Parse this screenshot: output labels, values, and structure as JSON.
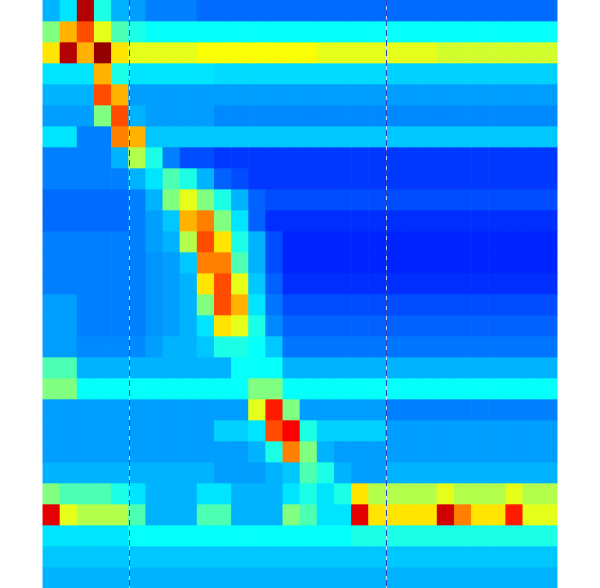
{
  "chart_data": {
    "type": "heatmap",
    "xlim": [
      0,
      30
    ],
    "ylim": [
      0,
      28
    ],
    "tick_labels": false,
    "grid": false,
    "color_range": [
      0,
      10
    ],
    "vlines": [
      5,
      20
    ],
    "cells": [
      [
        3,
        3.5,
        9.5,
        4,
        3,
        2.8,
        2.5,
        2.5,
        2.5,
        2.3,
        2.3,
        2.3,
        2.3,
        2.3,
        2.3,
        2.3,
        2.3,
        2.3,
        2.3,
        2.3,
        2.3,
        2.3,
        2.3,
        2.3,
        2.3,
        2.3,
        2.3,
        2.3,
        2.3,
        2.3
      ],
      [
        5,
        7,
        8,
        6,
        4.5,
        4,
        3.8,
        3.8,
        3.8,
        3.8,
        3.8,
        3.8,
        3.8,
        3.8,
        3.8,
        3.8,
        3.8,
        3.8,
        3.8,
        3.8,
        3.8,
        3.8,
        3.8,
        3.8,
        3.8,
        3.8,
        3.8,
        3.8,
        3.8,
        3.8
      ],
      [
        6.5,
        9.5,
        7,
        9.8,
        6.5,
        6,
        6,
        6,
        6,
        6.2,
        6.2,
        6.2,
        6.2,
        6.2,
        6.2,
        6.2,
        6,
        6,
        6,
        6,
        6,
        6,
        6,
        5.8,
        5.8,
        5.8,
        5.8,
        5.8,
        5.8,
        5.8
      ],
      [
        3.5,
        3.5,
        3.5,
        7,
        4,
        3.5,
        3.5,
        3.5,
        3.5,
        3.5,
        3.4,
        3.4,
        3.4,
        3.4,
        3.4,
        3.4,
        3.4,
        3.4,
        3.4,
        3.4,
        3.3,
        3.3,
        3.3,
        3.3,
        3.3,
        3.3,
        3.3,
        3.3,
        3.3,
        3.3
      ],
      [
        3,
        3,
        3,
        8,
        7,
        2.8,
        2.8,
        2.8,
        2.8,
        2.8,
        2.8,
        2.8,
        2.8,
        2.8,
        2.8,
        2.8,
        2.8,
        2.8,
        2.8,
        2.8,
        2.8,
        2.8,
        2.8,
        2.8,
        2.8,
        2.8,
        2.8,
        2.8,
        2.8,
        2.8
      ],
      [
        2.8,
        2.8,
        2.8,
        5,
        8,
        3,
        2.8,
        2.8,
        2.8,
        2.8,
        2.6,
        2.6,
        2.6,
        2.6,
        2.6,
        2.6,
        2.6,
        2.6,
        2.6,
        2.6,
        2.6,
        2.6,
        2.6,
        2.6,
        2.6,
        2.6,
        2.6,
        2.6,
        2.6,
        2.6
      ],
      [
        3.5,
        3.5,
        2.5,
        2.5,
        7.5,
        7,
        3.2,
        3.2,
        3.2,
        3.2,
        3.2,
        3.2,
        3.2,
        3.2,
        3.2,
        3.2,
        3.2,
        3.2,
        3.2,
        3.2,
        3.2,
        3.2,
        3.2,
        3.2,
        3.2,
        3.2,
        3.2,
        3.2,
        3.2,
        3.2
      ],
      [
        2.5,
        2.5,
        2.5,
        2.5,
        3,
        5.5,
        4,
        2.5,
        2,
        2,
        1.8,
        1.8,
        1.8,
        1.8,
        1.8,
        1.8,
        1.8,
        1.8,
        1.8,
        1.8,
        1.8,
        1.8,
        1.8,
        1.8,
        1.8,
        1.8,
        1.8,
        1.8,
        1.8,
        1.8
      ],
      [
        2.5,
        2.5,
        2.5,
        2.5,
        2.5,
        3,
        3.5,
        4.5,
        4,
        3,
        2.2,
        2,
        1.8,
        1.8,
        1.8,
        1.8,
        1.8,
        1.8,
        1.8,
        1.8,
        1.8,
        1.8,
        1.8,
        1.8,
        1.8,
        1.8,
        1.8,
        1.8,
        1.8,
        1.8
      ],
      [
        2.3,
        2.3,
        2.3,
        2.3,
        2.3,
        2.5,
        3,
        5,
        6,
        5,
        4,
        3,
        2.2,
        2,
        2,
        2,
        2,
        2,
        2,
        2,
        2,
        2,
        2,
        2,
        2,
        2,
        2,
        2,
        2,
        2
      ],
      [
        2.3,
        2.3,
        2.3,
        2.3,
        2.3,
        2.5,
        2.8,
        3.2,
        7,
        7.5,
        5,
        3.5,
        2.2,
        1.7,
        1.7,
        1.7,
        1.7,
        1.7,
        1.7,
        1.7,
        1.7,
        1.7,
        1.7,
        1.7,
        1.7,
        1.7,
        1.7,
        1.7,
        1.7,
        1.7
      ],
      [
        2.5,
        2.5,
        2.5,
        2.5,
        2.5,
        2.5,
        2.8,
        3,
        5.5,
        8,
        6.5,
        4,
        3,
        2,
        1.6,
        1.6,
        1.6,
        1.6,
        1.6,
        1.6,
        1.6,
        1.6,
        1.6,
        1.6,
        1.6,
        1.6,
        1.6,
        1.6,
        1.6,
        1.6
      ],
      [
        2.5,
        2.5,
        2.5,
        2.5,
        2.5,
        2.5,
        2.7,
        2.8,
        3.2,
        7.5,
        7.5,
        4.5,
        3,
        2,
        1.6,
        1.6,
        1.6,
        1.6,
        1.6,
        1.6,
        1.6,
        1.6,
        1.6,
        1.6,
        1.6,
        1.6,
        1.6,
        1.6,
        1.6,
        1.6
      ],
      [
        2.5,
        2.5,
        2.5,
        2.5,
        2.5,
        2.5,
        2.7,
        2.8,
        3,
        6.5,
        8,
        6,
        3.2,
        2.2,
        1.7,
        1.7,
        1.7,
        1.7,
        1.7,
        1.7,
        1.7,
        1.7,
        1.7,
        1.7,
        1.7,
        1.7,
        1.7,
        1.7,
        1.7,
        1.7
      ],
      [
        2.8,
        2.8,
        2.5,
        2.5,
        2.5,
        2.5,
        2.7,
        2.8,
        3,
        5,
        8,
        7,
        3.5,
        2.4,
        2,
        2,
        2,
        2,
        2,
        2,
        2,
        2,
        2,
        2,
        2,
        2,
        2,
        2,
        2,
        2
      ],
      [
        2.8,
        2.8,
        2.5,
        2.5,
        2.5,
        2.5,
        2.7,
        2.8,
        3,
        3.5,
        6.5,
        6,
        4,
        2.6,
        2.2,
        2.2,
        2.2,
        2.2,
        2.2,
        2.2,
        2.2,
        2.2,
        2.2,
        2.2,
        2.2,
        2.2,
        2.2,
        2.2,
        2.2,
        2.2
      ],
      [
        2.8,
        2.8,
        2.6,
        2.6,
        2.6,
        2.6,
        2.8,
        3,
        3,
        3.2,
        4,
        4,
        3.8,
        3.2,
        2.4,
        2.4,
        2.4,
        2.4,
        2.4,
        2.4,
        2.4,
        2.4,
        2.4,
        2.4,
        2.4,
        2.4,
        2.4,
        2.4,
        2.4,
        2.4
      ],
      [
        4.5,
        4.5,
        3,
        3,
        3,
        3,
        3,
        3,
        3,
        3,
        3,
        3.8,
        3.8,
        3.8,
        3,
        3,
        3,
        3,
        3,
        3,
        3,
        3,
        3,
        3,
        3,
        3,
        3,
        3,
        3,
        3
      ],
      [
        5,
        5,
        3.8,
        3.8,
        3.8,
        3.8,
        3.8,
        3.8,
        3.8,
        3.8,
        3.8,
        3.8,
        5,
        5,
        3.8,
        3.8,
        3.8,
        3.8,
        3.8,
        3.8,
        3.8,
        3.8,
        3.8,
        3.8,
        3.8,
        3.8,
        3.8,
        3.8,
        3.8,
        3.8
      ],
      [
        2.8,
        2.8,
        2.8,
        2.8,
        2.8,
        2.8,
        2.8,
        2.8,
        2.8,
        2.8,
        2.8,
        2.8,
        6,
        8.5,
        5,
        2.8,
        2.8,
        2.8,
        2.8,
        2.8,
        2.5,
        2.5,
        2.5,
        2.5,
        2.5,
        2.5,
        2.5,
        2.5,
        2.5,
        2.5
      ],
      [
        2.8,
        2.8,
        2.8,
        2.8,
        2.8,
        2.8,
        2.8,
        2.8,
        2.8,
        2.8,
        3.3,
        3.3,
        3.5,
        8,
        8.8,
        4,
        3.3,
        3.3,
        3.3,
        3.3,
        2.8,
        2.8,
        2.8,
        2.8,
        2.8,
        2.8,
        2.8,
        2.8,
        2.8,
        2.8
      ],
      [
        2.8,
        2.8,
        2.8,
        2.8,
        2.8,
        2.8,
        2.8,
        2.8,
        2.8,
        2.8,
        2.8,
        2.8,
        3,
        4,
        7.5,
        5,
        3,
        2.8,
        2.8,
        2.8,
        2.8,
        2.8,
        2.8,
        2.8,
        2.8,
        2.8,
        2.8,
        2.8,
        2.8,
        2.8
      ],
      [
        3,
        3,
        3,
        3,
        3,
        3,
        3,
        3,
        3,
        3,
        2.8,
        2.8,
        2.8,
        3,
        3.2,
        4.5,
        4,
        3,
        2.8,
        2.8,
        3,
        3,
        3,
        3,
        3,
        3,
        3,
        3,
        3,
        3
      ],
      [
        5,
        4.5,
        4.5,
        4.5,
        4,
        3.5,
        3,
        3,
        3,
        3.5,
        3.5,
        3,
        3,
        3,
        3.5,
        4,
        3.5,
        4,
        6.5,
        5.5,
        5.5,
        5.5,
        5.5,
        6,
        5.5,
        5.5,
        5.5,
        6,
        5.5,
        5.5
      ],
      [
        9,
        6,
        5.5,
        5.5,
        5.5,
        4.5,
        3,
        3,
        3,
        4.5,
        4.5,
        3,
        3,
        3,
        5,
        4.5,
        3.5,
        3.5,
        9,
        6.5,
        6.5,
        6.5,
        6.5,
        9.2,
        7.5,
        6.5,
        6.5,
        8.5,
        6,
        6
      ],
      [
        3.5,
        3.5,
        3.5,
        3.5,
        3.5,
        3.8,
        3.8,
        3.8,
        3.8,
        3.8,
        3.8,
        3.8,
        3.8,
        3.8,
        3.8,
        3.8,
        3.8,
        3.8,
        4,
        4,
        4,
        4,
        4,
        4,
        4,
        4,
        4,
        4,
        4,
        4
      ],
      [
        3.2,
        3.2,
        3.2,
        3.2,
        3.2,
        3.2,
        3.2,
        3.2,
        3.2,
        3.2,
        3.2,
        3.2,
        3.2,
        3.2,
        3.2,
        3.2,
        3.2,
        3.2,
        3.2,
        3.2,
        3.2,
        3.2,
        3.2,
        3.2,
        3.2,
        3.2,
        3.2,
        3.2,
        3.2,
        3.2
      ],
      [
        3,
        3,
        3,
        3,
        3,
        3,
        3,
        3,
        3,
        3,
        3,
        3,
        3,
        3,
        3,
        3,
        3,
        3,
        3,
        3,
        3,
        3,
        3,
        3,
        3,
        3,
        3,
        3,
        3,
        3
      ]
    ]
  }
}
